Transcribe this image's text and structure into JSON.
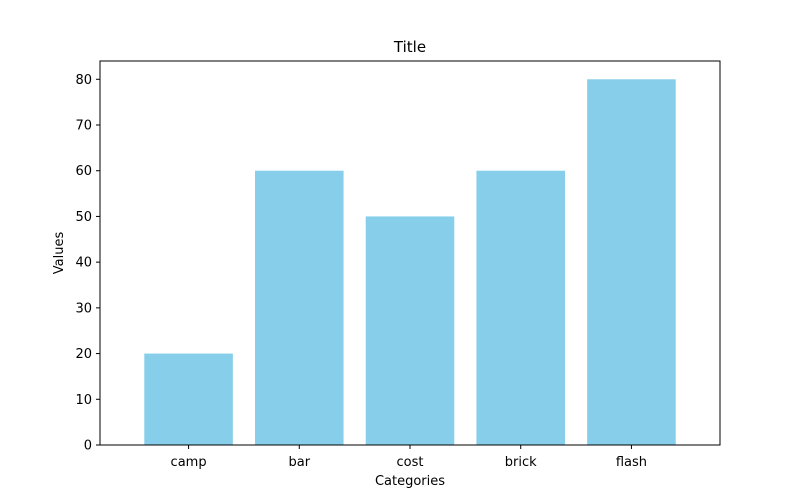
{
  "chart_data": {
    "type": "bar",
    "title": "Title",
    "xlabel": "Categories",
    "ylabel": "Values",
    "categories": [
      "camp",
      "bar",
      "cost",
      "brick",
      "flash"
    ],
    "values": [
      20,
      60,
      50,
      60,
      80
    ],
    "ylim": [
      0,
      84
    ],
    "yticks": [
      0,
      10,
      20,
      30,
      40,
      50,
      60,
      70,
      80
    ],
    "grid": false,
    "bar_color": "#87ceeb"
  }
}
